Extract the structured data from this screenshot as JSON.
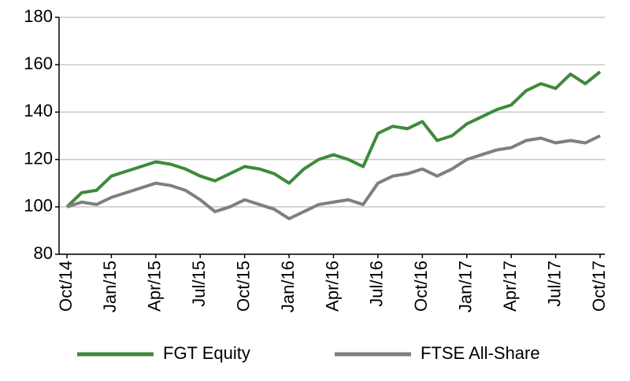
{
  "chart_data": {
    "type": "line",
    "categories": [
      "Oct/14",
      null,
      null,
      "Jan/15",
      null,
      null,
      "Apr/15",
      null,
      null,
      "Jul/15",
      null,
      null,
      "Oct/15",
      null,
      null,
      "Jan/16",
      null,
      null,
      "Apr/16",
      null,
      null,
      "Jul/16",
      null,
      null,
      "Oct/16",
      null,
      null,
      "Jan/17",
      null,
      null,
      "Apr/17",
      null,
      null,
      "Jul/17",
      null,
      null,
      "Oct/17"
    ],
    "series": [
      {
        "name": "FGT Equity",
        "color": "#3f8a3a",
        "values": [
          100,
          106,
          107,
          113,
          115,
          117,
          119,
          118,
          116,
          113,
          111,
          114,
          117,
          116,
          114,
          110,
          116,
          120,
          122,
          120,
          117,
          131,
          134,
          133,
          136,
          128,
          130,
          135,
          138,
          141,
          143,
          149,
          152,
          150,
          156,
          152,
          157
        ]
      },
      {
        "name": "FTSE All-Share",
        "color": "#7f7f7f",
        "values": [
          100,
          102,
          101,
          104,
          106,
          108,
          110,
          109,
          107,
          103,
          98,
          100,
          103,
          101,
          99,
          95,
          98,
          101,
          102,
          103,
          101,
          110,
          113,
          114,
          116,
          113,
          116,
          120,
          122,
          124,
          125,
          128,
          129,
          127,
          128,
          127,
          130
        ]
      }
    ],
    "ylim": [
      80,
      180
    ],
    "yticks": [
      80,
      100,
      120,
      140,
      160,
      180
    ],
    "grid": true
  }
}
